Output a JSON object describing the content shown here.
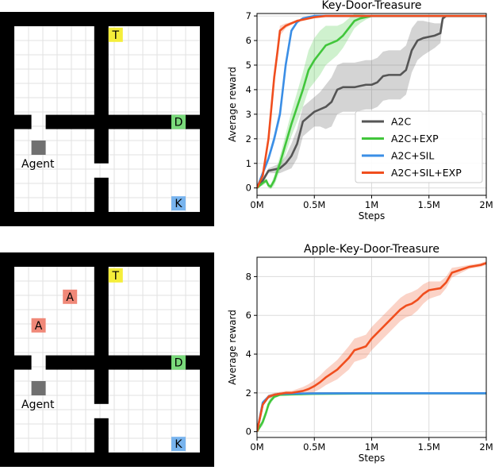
{
  "grid_maps": [
    {
      "labels": {
        "T": "T",
        "D": "D",
        "K": "K",
        "agent": "Agent"
      },
      "colors": {
        "T": "#f5ee3a",
        "D": "#79d97a",
        "K": "#78b4ee",
        "agent": "#707070",
        "wall": "#000000"
      }
    },
    {
      "labels": {
        "T": "T",
        "D": "D",
        "K": "K",
        "A": "A",
        "agent": "Agent"
      },
      "colors": {
        "T": "#f5ee3a",
        "D": "#79d97a",
        "K": "#78b4ee",
        "A": "#f08878",
        "agent": "#707070",
        "wall": "#000000"
      }
    }
  ],
  "chart_data": [
    {
      "type": "line",
      "title": "Key-Door-Treasure",
      "xlabel": "Steps",
      "ylabel": "Average reward",
      "xlim": [
        0,
        2
      ],
      "ylim": [
        -0.3,
        7.1
      ],
      "xticks": [
        0,
        0.5,
        1,
        1.5,
        2
      ],
      "xtick_labels": [
        "0M",
        "0.5M",
        "1M",
        "1.5M",
        "2M"
      ],
      "yticks": [
        0,
        1,
        2,
        3,
        4,
        5,
        6,
        7
      ],
      "ytick_labels": [
        "0",
        "1",
        "2",
        "3",
        "4",
        "5",
        "6",
        "7"
      ],
      "grid": true,
      "legend": "center-right",
      "series": [
        {
          "name": "A2C",
          "color": "#555555",
          "x": [
            0,
            0.05,
            0.1,
            0.15,
            0.2,
            0.25,
            0.3,
            0.35,
            0.4,
            0.45,
            0.5,
            0.55,
            0.6,
            0.65,
            0.7,
            0.75,
            0.8,
            0.85,
            0.9,
            0.95,
            1.0,
            1.05,
            1.1,
            1.15,
            1.2,
            1.25,
            1.3,
            1.35,
            1.4,
            1.45,
            1.5,
            1.55,
            1.6,
            1.62,
            1.65,
            1.7,
            1.8,
            1.9,
            2.0
          ],
          "y": [
            0,
            0.3,
            0.7,
            0.75,
            0.8,
            1.0,
            1.3,
            1.8,
            2.7,
            2.9,
            3.1,
            3.2,
            3.3,
            3.5,
            4.0,
            4.1,
            4.1,
            4.1,
            4.15,
            4.2,
            4.2,
            4.3,
            4.55,
            4.6,
            4.6,
            4.6,
            4.8,
            5.6,
            6.0,
            6.1,
            6.15,
            6.2,
            6.3,
            6.9,
            7.0,
            7.0,
            7.0,
            7.0,
            7.0
          ],
          "band": [
            0,
            0.1,
            0.1,
            0.15,
            0.2,
            0.3,
            0.5,
            0.6,
            0.6,
            0.6,
            0.6,
            0.7,
            0.9,
            1.0,
            1.0,
            1.0,
            1.0,
            1.0,
            1.0,
            1.0,
            1.0,
            1.0,
            1.0,
            1.0,
            1.0,
            1.0,
            1.0,
            0.9,
            0.8,
            0.7,
            0.6,
            0.5,
            0.4,
            0.1,
            0.05,
            0.05,
            0.05,
            0.05,
            0.05
          ]
        },
        {
          "name": "A2C+EXP",
          "color": "#41c63b",
          "x": [
            0,
            0.05,
            0.08,
            0.1,
            0.12,
            0.15,
            0.2,
            0.25,
            0.3,
            0.35,
            0.4,
            0.45,
            0.5,
            0.55,
            0.6,
            0.65,
            0.7,
            0.75,
            0.8,
            0.85,
            0.9,
            0.95,
            1.0,
            1.1,
            1.2,
            1.4,
            1.6,
            1.8,
            2.0
          ],
          "y": [
            0,
            0.2,
            0.3,
            0.1,
            0.05,
            0.3,
            1.0,
            1.8,
            2.6,
            3.3,
            4.0,
            4.8,
            5.2,
            5.5,
            5.8,
            5.9,
            6.0,
            6.2,
            6.5,
            6.8,
            6.9,
            6.95,
            7.0,
            7.0,
            7.0,
            7.0,
            7.0,
            7.0,
            7.0
          ],
          "band": [
            0,
            0.1,
            0.1,
            0.1,
            0.1,
            0.2,
            0.3,
            0.4,
            0.5,
            0.6,
            0.7,
            0.8,
            0.9,
            0.9,
            0.8,
            0.7,
            0.6,
            0.5,
            0.4,
            0.3,
            0.2,
            0.1,
            0.05,
            0.05,
            0.05,
            0.05,
            0.05,
            0.05,
            0.05
          ]
        },
        {
          "name": "A2C+SIL",
          "color": "#3a8ee6",
          "x": [
            0,
            0.05,
            0.1,
            0.15,
            0.2,
            0.25,
            0.3,
            0.35,
            0.4,
            0.45,
            0.5,
            0.6,
            0.8,
            1.0,
            1.2,
            1.5,
            1.8,
            2.0
          ],
          "y": [
            0,
            0.6,
            1.2,
            2.0,
            3.0,
            5.0,
            6.4,
            6.75,
            6.9,
            6.95,
            7.0,
            7.0,
            7.0,
            7.0,
            7.0,
            7.0,
            7.0,
            7.0
          ],
          "band": [
            0,
            0.1,
            0.15,
            0.2,
            0.25,
            0.2,
            0.1,
            0.05,
            0.05,
            0.05,
            0.05,
            0.05,
            0.05,
            0.05,
            0.05,
            0.05,
            0.05,
            0.05
          ]
        },
        {
          "name": "A2C+SIL+EXP",
          "color": "#f04e1e",
          "x": [
            0,
            0.05,
            0.1,
            0.15,
            0.18,
            0.2,
            0.25,
            0.3,
            0.35,
            0.4,
            0.5,
            0.6,
            0.8,
            1.0,
            1.2,
            1.5,
            1.8,
            2.0
          ],
          "y": [
            0,
            0.5,
            2.0,
            4.5,
            5.6,
            6.4,
            6.6,
            6.7,
            6.8,
            6.85,
            6.95,
            7.0,
            7.0,
            7.0,
            7.0,
            7.0,
            7.0,
            7.0
          ],
          "band": [
            0,
            0.1,
            0.2,
            0.3,
            0.3,
            0.2,
            0.1,
            0.05,
            0.05,
            0.05,
            0.05,
            0.05,
            0.05,
            0.05,
            0.05,
            0.05,
            0.05,
            0.05
          ]
        }
      ]
    },
    {
      "type": "line",
      "title": "Apple-Key-Door-Treasure",
      "xlabel": "Steps",
      "ylabel": "Average reward",
      "xlim": [
        0,
        2
      ],
      "ylim": [
        -0.3,
        9.0
      ],
      "xticks": [
        0,
        0.5,
        1,
        1.5,
        2
      ],
      "xtick_labels": [
        "0M",
        "0.5M",
        "1M",
        "1.5M",
        "2M"
      ],
      "yticks": [
        0,
        2,
        4,
        6,
        8
      ],
      "ytick_labels": [
        "0",
        "2",
        "4",
        "6",
        "8"
      ],
      "grid": true,
      "series": [
        {
          "name": "A2C",
          "color": "#555555",
          "x": [
            0,
            0.05,
            0.1,
            0.15,
            0.2,
            0.3,
            0.5,
            1.0,
            1.5,
            2.0
          ],
          "y": [
            0,
            1.4,
            1.8,
            1.9,
            1.95,
            1.95,
            1.97,
            1.98,
            1.98,
            1.98
          ],
          "band": [
            0,
            0.1,
            0.1,
            0.05,
            0.05,
            0.05,
            0.05,
            0.05,
            0.05,
            0.05
          ]
        },
        {
          "name": "A2C+EXP",
          "color": "#41c63b",
          "x": [
            0,
            0.05,
            0.08,
            0.1,
            0.12,
            0.15,
            0.2,
            0.3,
            0.5,
            1.0,
            1.5,
            2.0
          ],
          "y": [
            0,
            0.5,
            1.0,
            1.4,
            1.6,
            1.8,
            1.9,
            1.92,
            1.95,
            1.97,
            1.98,
            1.98
          ],
          "band": [
            0,
            0.2,
            0.2,
            0.2,
            0.15,
            0.1,
            0.05,
            0.05,
            0.05,
            0.05,
            0.05,
            0.05
          ]
        },
        {
          "name": "A2C+SIL",
          "color": "#3a8ee6",
          "x": [
            0,
            0.05,
            0.1,
            0.15,
            0.2,
            0.3,
            0.5,
            1.0,
            1.5,
            2.0
          ],
          "y": [
            0,
            1.5,
            1.8,
            1.9,
            1.95,
            1.96,
            1.97,
            1.98,
            1.98,
            1.98
          ],
          "band": [
            0,
            0.1,
            0.1,
            0.05,
            0.05,
            0.05,
            0.05,
            0.05,
            0.05,
            0.05
          ]
        },
        {
          "name": "A2C+SIL+EXP",
          "color": "#f04e1e",
          "x": [
            0,
            0.05,
            0.1,
            0.15,
            0.2,
            0.25,
            0.3,
            0.35,
            0.4,
            0.45,
            0.5,
            0.55,
            0.6,
            0.65,
            0.7,
            0.75,
            0.8,
            0.85,
            0.9,
            0.95,
            1.0,
            1.05,
            1.1,
            1.15,
            1.2,
            1.25,
            1.3,
            1.35,
            1.4,
            1.45,
            1.5,
            1.55,
            1.6,
            1.65,
            1.7,
            1.75,
            1.8,
            1.85,
            1.9,
            1.95,
            2.0
          ],
          "y": [
            0,
            1.4,
            1.8,
            1.9,
            1.95,
            2.0,
            2.0,
            2.05,
            2.1,
            2.2,
            2.35,
            2.55,
            2.8,
            3.0,
            3.2,
            3.5,
            3.8,
            4.2,
            4.3,
            4.4,
            4.8,
            5.1,
            5.4,
            5.7,
            6.0,
            6.3,
            6.5,
            6.6,
            6.8,
            7.1,
            7.3,
            7.35,
            7.4,
            7.7,
            8.2,
            8.3,
            8.4,
            8.5,
            8.55,
            8.6,
            8.7
          ],
          "band": [
            0,
            0.1,
            0.1,
            0.1,
            0.1,
            0.1,
            0.1,
            0.15,
            0.2,
            0.25,
            0.3,
            0.35,
            0.4,
            0.45,
            0.5,
            0.55,
            0.6,
            0.6,
            0.6,
            0.6,
            0.6,
            0.6,
            0.6,
            0.6,
            0.6,
            0.6,
            0.6,
            0.6,
            0.55,
            0.5,
            0.45,
            0.4,
            0.35,
            0.3,
            0.25,
            0.2,
            0.15,
            0.1,
            0.1,
            0.1,
            0.1
          ]
        }
      ]
    }
  ]
}
